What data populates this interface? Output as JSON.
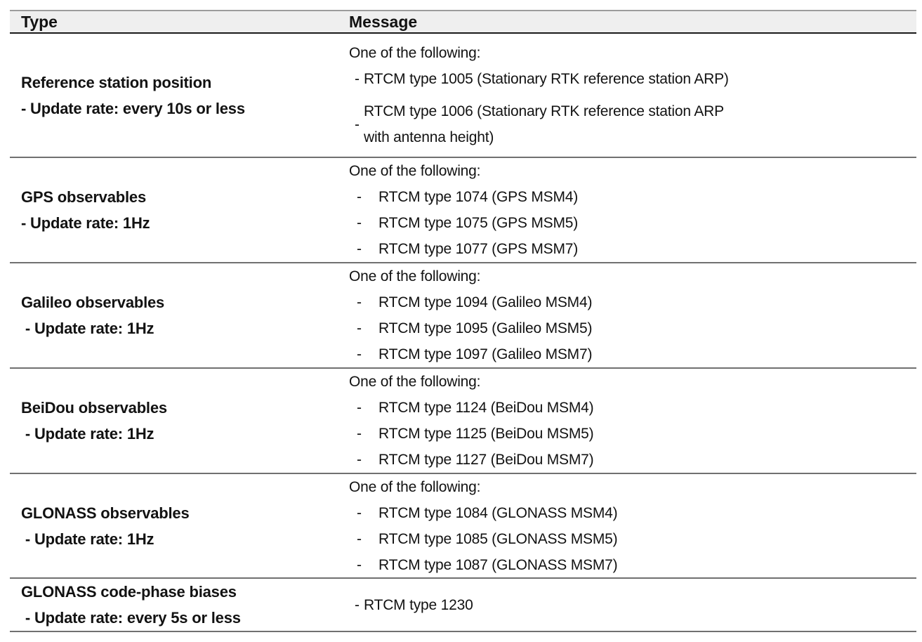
{
  "colors": {
    "header_bg": "#efefef",
    "border_dark": "#1a1a1a",
    "border_mid": "#707070",
    "border_light": "#9c9c9c",
    "text": "#121212"
  },
  "table": {
    "columns": [
      "Type",
      "Message"
    ],
    "rows": [
      {
        "type_lines": [
          "Reference station position",
          "- Update rate: every 10s or less"
        ],
        "intro": "One of the following:",
        "list_style": "tight",
        "items": [
          {
            "bullet": "-",
            "lines": [
              "RTCM type 1005 (Stationary RTK reference station ARP)"
            ]
          },
          {
            "bullet": "-",
            "lines": [
              "RTCM type 1006 (Stationary RTK reference station ARP",
              "with antenna height)"
            ]
          }
        ]
      },
      {
        "type_lines": [
          "GPS observables",
          "- Update rate: 1Hz"
        ],
        "intro": "One of the following:",
        "list_style": "spread",
        "items": [
          {
            "bullet": "-",
            "lines": [
              "RTCM type 1074 (GPS MSM4)"
            ]
          },
          {
            "bullet": "-",
            "lines": [
              "RTCM type 1075 (GPS MSM5)"
            ]
          },
          {
            "bullet": "-",
            "lines": [
              "RTCM type 1077 (GPS MSM7)"
            ]
          }
        ]
      },
      {
        "type_lines": [
          "Galileo observables",
          " - Update rate: 1Hz"
        ],
        "intro": "One of the following:",
        "list_style": "spread",
        "items": [
          {
            "bullet": "-",
            "lines": [
              "RTCM type 1094 (Galileo MSM4)"
            ]
          },
          {
            "bullet": "-",
            "lines": [
              "RTCM type 1095 (Galileo MSM5)"
            ]
          },
          {
            "bullet": "-",
            "lines": [
              "RTCM type 1097 (Galileo MSM7)"
            ]
          }
        ]
      },
      {
        "type_lines": [
          "BeiDou observables",
          " - Update rate: 1Hz"
        ],
        "intro": "One of the following:",
        "list_style": "spread",
        "items": [
          {
            "bullet": "-",
            "lines": [
              "RTCM type 1124 (BeiDou MSM4)"
            ]
          },
          {
            "bullet": "-",
            "lines": [
              "RTCM type 1125 (BeiDou MSM5)"
            ]
          },
          {
            "bullet": "-",
            "lines": [
              "RTCM type 1127 (BeiDou MSM7)"
            ]
          }
        ]
      },
      {
        "type_lines": [
          "GLONASS observables",
          " - Update rate: 1Hz"
        ],
        "intro": "One of the following:",
        "list_style": "spread",
        "items": [
          {
            "bullet": "-",
            "lines": [
              "RTCM type 1084 (GLONASS MSM4)"
            ]
          },
          {
            "bullet": "-",
            "lines": [
              "RTCM type 1085 (GLONASS MSM5)"
            ]
          },
          {
            "bullet": "-",
            "lines": [
              "RTCM type 1087 (GLONASS MSM7)"
            ]
          }
        ]
      },
      {
        "type_lines": [
          "GLONASS code-phase biases",
          " - Update rate: every 5s or less"
        ],
        "intro": null,
        "list_style": "tight",
        "items": [
          {
            "bullet": "-",
            "lines": [
              "RTCM type 1230"
            ]
          }
        ]
      }
    ]
  }
}
